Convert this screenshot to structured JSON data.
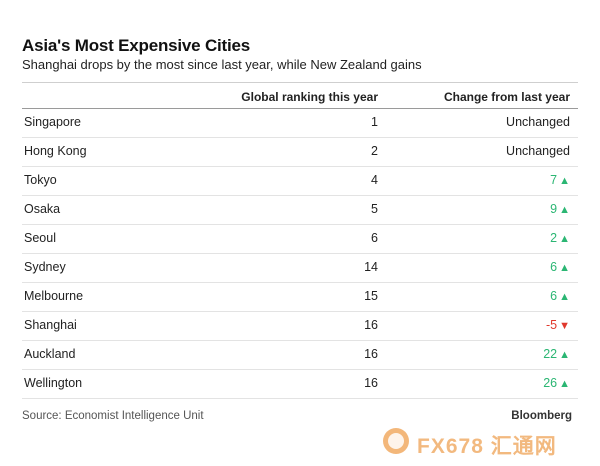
{
  "chart_data": {
    "type": "table",
    "title": "Asia's Most Expensive Cities",
    "subtitle": "Shanghai drops by the most since last year, while New Zealand gains",
    "columns": [
      "",
      "Global ranking this year",
      "Change from last year"
    ],
    "rows": [
      {
        "city": "Singapore",
        "rank": "1",
        "change": "Unchanged",
        "direction": "same"
      },
      {
        "city": "Hong Kong",
        "rank": "2",
        "change": "Unchanged",
        "direction": "same"
      },
      {
        "city": "Tokyo",
        "rank": "4",
        "change": "7",
        "direction": "up"
      },
      {
        "city": "Osaka",
        "rank": "5",
        "change": "9",
        "direction": "up"
      },
      {
        "city": "Seoul",
        "rank": "6",
        "change": "2",
        "direction": "up"
      },
      {
        "city": "Sydney",
        "rank": "14",
        "change": "6",
        "direction": "up"
      },
      {
        "city": "Melbourne",
        "rank": "15",
        "change": "6",
        "direction": "up"
      },
      {
        "city": "Shanghai",
        "rank": "16",
        "change": "-5",
        "direction": "down"
      },
      {
        "city": "Auckland",
        "rank": "16",
        "change": "22",
        "direction": "up"
      },
      {
        "city": "Wellington",
        "rank": "16",
        "change": "26",
        "direction": "up"
      }
    ],
    "source": "Source: Economist Intelligence Unit",
    "brand": "Bloomberg"
  },
  "colors": {
    "up": "#2bb673",
    "down": "#e0392d"
  },
  "icons": {
    "up": "▲",
    "down": "▼"
  },
  "watermark": {
    "text": "FX678 汇通网"
  }
}
